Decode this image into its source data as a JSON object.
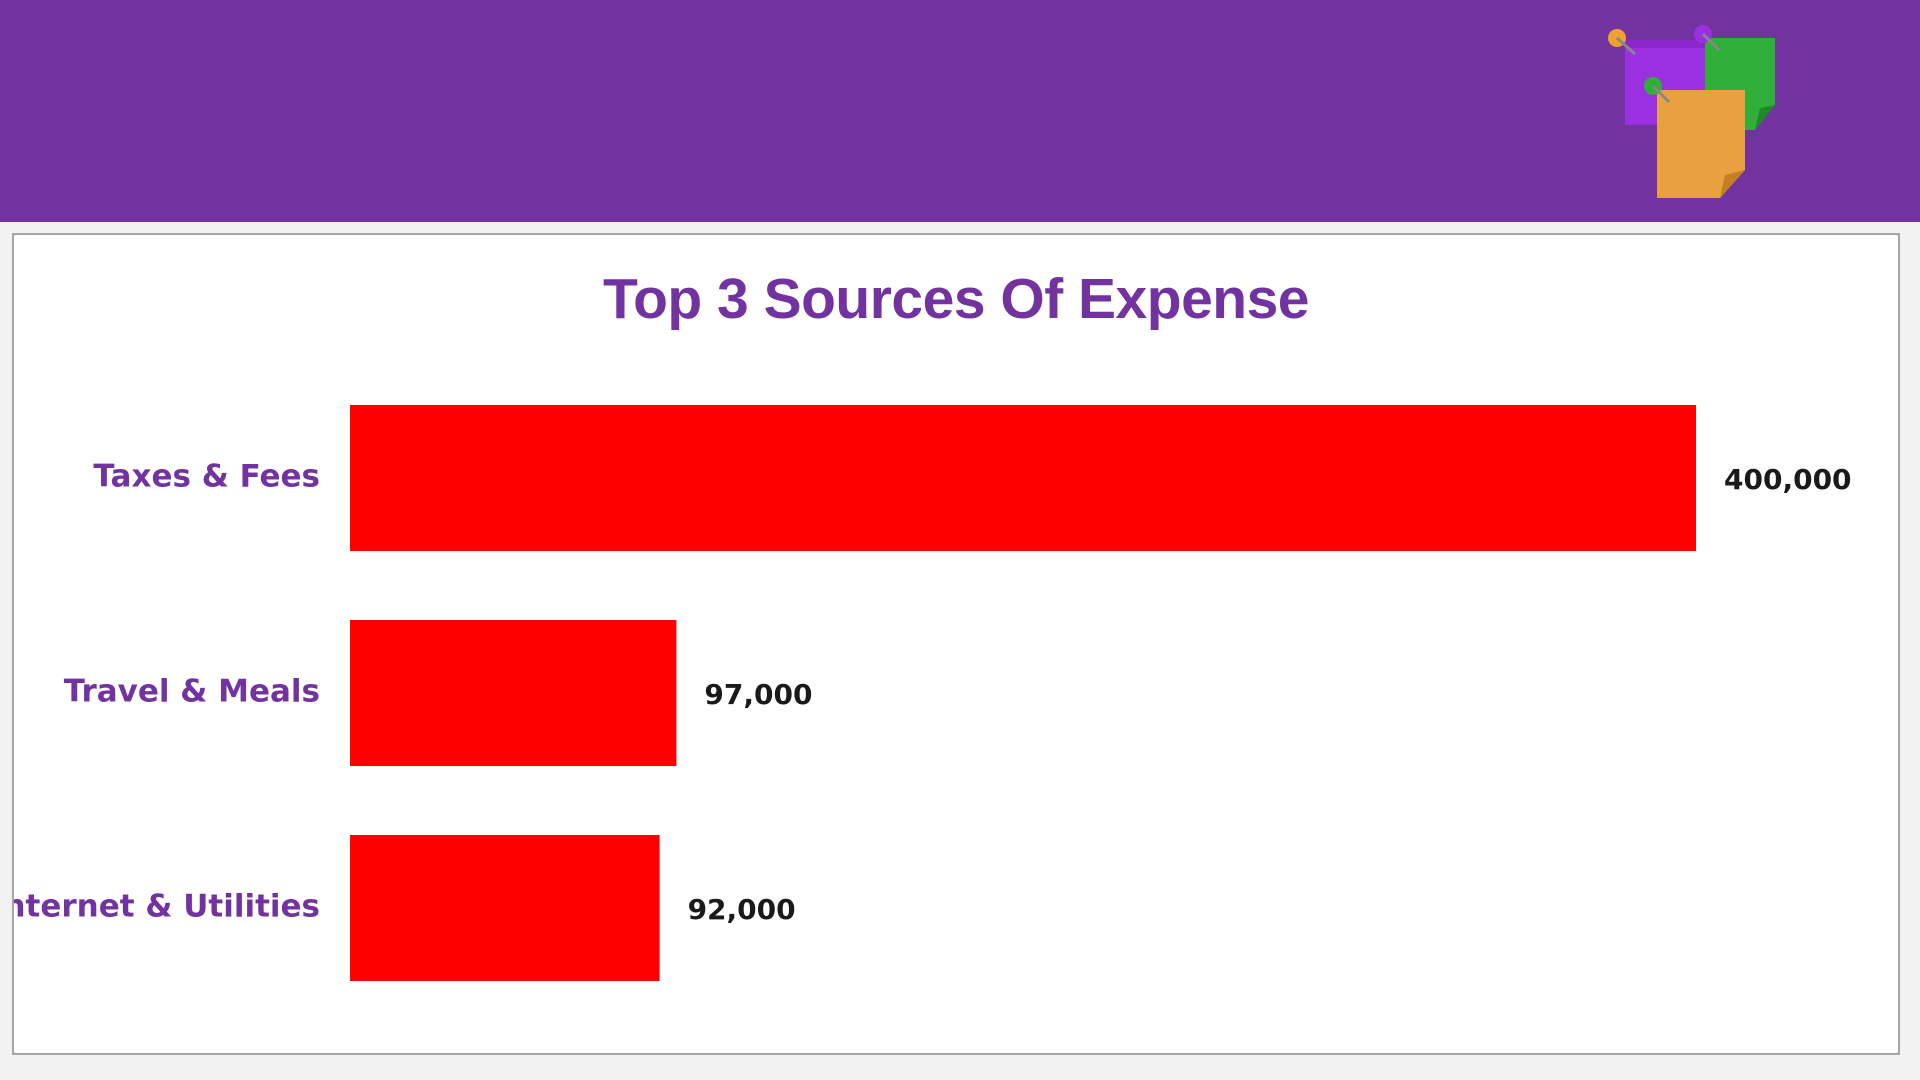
{
  "header": {
    "icon": "sticky-notes-icon",
    "background_color": "#7233a0"
  },
  "chart_data": {
    "type": "bar",
    "orientation": "horizontal",
    "title": "Top 3 Sources Of Expense",
    "categories": [
      "Taxes & Fees",
      "Travel & Meals",
      "Internet & Utilities"
    ],
    "values": [
      400000,
      97000,
      92000
    ],
    "value_labels": [
      "400,000",
      "97,000",
      "92,000"
    ],
    "xlim": [
      0,
      400000
    ],
    "bar_color": "#ff0000",
    "label_color": "#7233a0",
    "grid": false,
    "legend": "none"
  }
}
